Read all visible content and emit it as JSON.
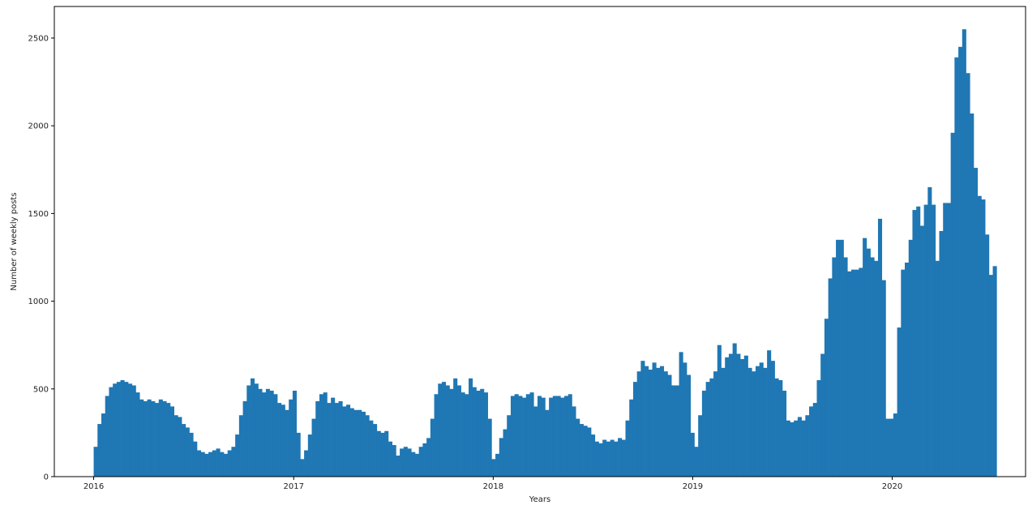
{
  "chart_data": {
    "type": "bar",
    "title": "",
    "xlabel": "Years",
    "ylabel": "Number of weekly posts",
    "color": "#1f77b4",
    "grid": false,
    "legend": "none",
    "ylim": [
      0,
      2680
    ],
    "xlim": [
      "2015-10-21",
      "2020-09-01"
    ],
    "x_ticks": [
      {
        "label": "2016",
        "date": "2016-01-01"
      },
      {
        "label": "2017",
        "date": "2017-01-01"
      },
      {
        "label": "2018",
        "date": "2018-01-01"
      },
      {
        "label": "2019",
        "date": "2019-01-01"
      },
      {
        "label": "2020",
        "date": "2020-01-01"
      }
    ],
    "y_ticks": [
      0,
      500,
      1000,
      1500,
      2000,
      2500
    ],
    "first_week": "2016-01-01",
    "week_days": 7,
    "values": [
      170,
      300,
      360,
      460,
      510,
      530,
      540,
      550,
      540,
      530,
      520,
      480,
      440,
      430,
      440,
      430,
      420,
      440,
      430,
      420,
      400,
      350,
      340,
      300,
      280,
      250,
      200,
      150,
      140,
      130,
      140,
      150,
      160,
      140,
      130,
      150,
      170,
      240,
      350,
      430,
      520,
      560,
      530,
      500,
      480,
      500,
      490,
      470,
      420,
      410,
      380,
      440,
      490,
      250,
      100,
      150,
      240,
      330,
      430,
      470,
      480,
      420,
      450,
      420,
      430,
      400,
      410,
      390,
      380,
      380,
      370,
      350,
      320,
      300,
      260,
      250,
      260,
      200,
      180,
      120,
      160,
      170,
      160,
      140,
      130,
      170,
      190,
      220,
      330,
      470,
      530,
      540,
      520,
      500,
      560,
      520,
      480,
      470,
      560,
      510,
      490,
      500,
      480,
      330,
      100,
      130,
      220,
      270,
      350,
      460,
      470,
      460,
      450,
      470,
      480,
      400,
      460,
      450,
      380,
      450,
      460,
      460,
      450,
      460,
      470,
      400,
      330,
      300,
      290,
      280,
      240,
      200,
      190,
      210,
      200,
      210,
      200,
      220,
      210,
      320,
      440,
      540,
      600,
      660,
      630,
      610,
      650,
      620,
      630,
      600,
      580,
      520,
      520,
      710,
      650,
      580,
      250,
      170,
      350,
      490,
      540,
      560,
      600,
      750,
      620,
      680,
      700,
      760,
      700,
      670,
      690,
      620,
      600,
      630,
      650,
      620,
      720,
      660,
      560,
      550,
      490,
      320,
      310,
      320,
      340,
      320,
      350,
      400,
      420,
      550,
      700,
      900,
      1130,
      1250,
      1350,
      1350,
      1250,
      1170,
      1180,
      1180,
      1190,
      1360,
      1300,
      1250,
      1230,
      1470,
      1120,
      330,
      330,
      360,
      850,
      1180,
      1220,
      1350,
      1520,
      1540,
      1430,
      1550,
      1650,
      1550,
      1230,
      1400,
      1560,
      1560,
      1960,
      2390,
      2450,
      2550,
      2300,
      2070,
      1760,
      1600,
      1580,
      1380,
      1150,
      1200
    ]
  }
}
